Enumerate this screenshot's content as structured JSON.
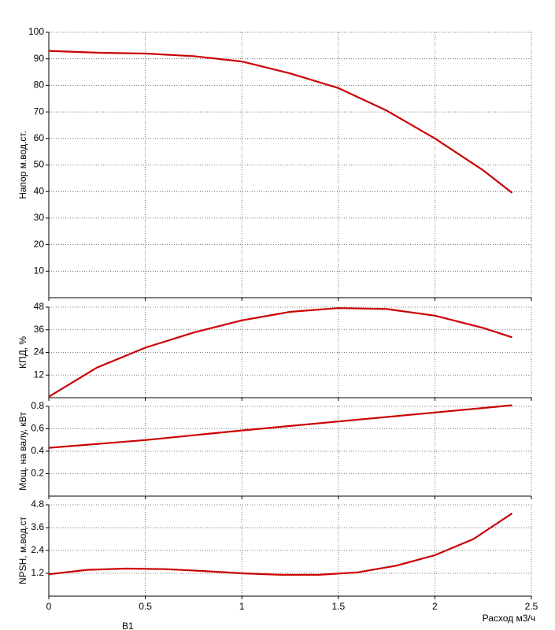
{
  "chart_data": [
    {
      "type": "line",
      "y_label": "Напор м.вод.ст.",
      "xlim": [
        0,
        2.5
      ],
      "ylim": [
        0,
        100
      ],
      "yticks": [
        10,
        20,
        30,
        40,
        50,
        60,
        70,
        80,
        90,
        100
      ],
      "grid": true,
      "series": [
        {
          "color": "#cc0000",
          "x": [
            0,
            0.25,
            0.5,
            0.75,
            1,
            1.25,
            1.5,
            1.75,
            2,
            2.25,
            2.4
          ],
          "values": [
            93,
            92.3,
            92,
            91,
            89,
            84.5,
            79,
            70.5,
            60,
            48,
            39.5
          ]
        }
      ]
    },
    {
      "type": "line",
      "y_label": "КПД, %",
      "xlim": [
        0,
        2.5
      ],
      "ylim": [
        0,
        48
      ],
      "yticks": [
        12,
        24,
        36,
        48
      ],
      "grid": true,
      "series": [
        {
          "color": "#cc0000",
          "x": [
            0,
            0.25,
            0.5,
            0.75,
            1,
            1.25,
            1.5,
            1.75,
            2,
            2.25,
            2.4
          ],
          "values": [
            0.5,
            16,
            26.5,
            34.5,
            41,
            45.5,
            47.5,
            47,
            43.5,
            37,
            32
          ]
        }
      ]
    },
    {
      "type": "line",
      "y_label": "Мощ. на валу, кВт",
      "xlim": [
        0,
        2.5
      ],
      "ylim": [
        0,
        0.8
      ],
      "yticks": [
        0.2,
        0.4,
        0.6,
        0.8
      ],
      "grid": true,
      "series": [
        {
          "color": "#cc0000",
          "x": [
            0,
            0.5,
            1,
            1.5,
            2,
            2.4
          ],
          "values": [
            0.43,
            0.5,
            0.585,
            0.665,
            0.745,
            0.81
          ]
        }
      ]
    },
    {
      "type": "line",
      "y_label": "NPSH, м.вод.ст",
      "x_label": "Расход м3/ч",
      "note": "В1",
      "xlim": [
        0,
        2.5
      ],
      "ylim": [
        0,
        4.8
      ],
      "xticks": [
        0,
        0.5,
        1,
        1.5,
        2,
        2.5
      ],
      "yticks": [
        1.2,
        2.4,
        3.6,
        4.8
      ],
      "grid": true,
      "series": [
        {
          "color": "#cc0000",
          "x": [
            0,
            0.2,
            0.4,
            0.6,
            0.8,
            1,
            1.2,
            1.4,
            1.6,
            1.8,
            2,
            2.2,
            2.4
          ],
          "values": [
            1.15,
            1.38,
            1.45,
            1.42,
            1.32,
            1.2,
            1.12,
            1.12,
            1.25,
            1.6,
            2.15,
            3.0,
            4.35
          ]
        }
      ]
    }
  ]
}
